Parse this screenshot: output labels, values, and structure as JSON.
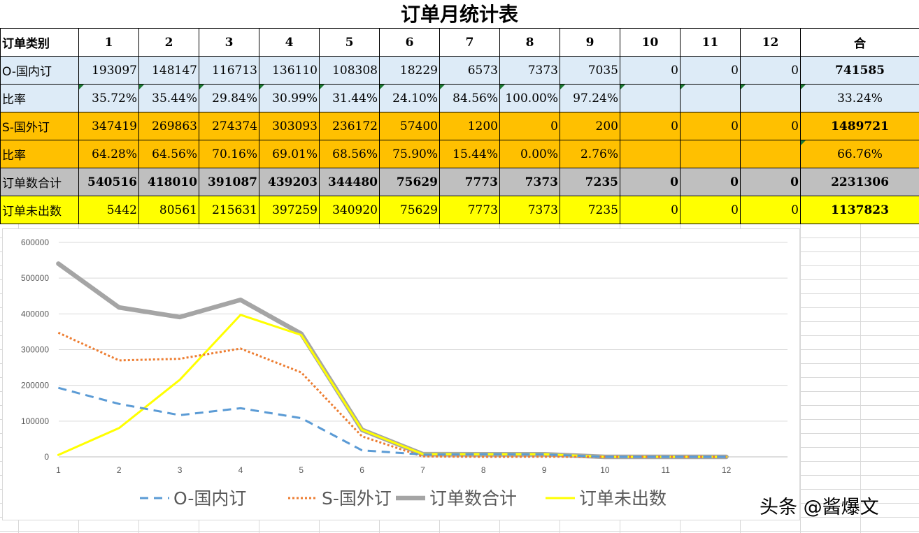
{
  "title": "订单月统计表",
  "table": {
    "headers": [
      "订单类别",
      "1",
      "2",
      "3",
      "4",
      "5",
      "6",
      "7",
      "8",
      "9",
      "10",
      "11",
      "12",
      "合"
    ],
    "rows": [
      {
        "label": "O-国内订",
        "values": [
          "193097",
          "148147",
          "116713",
          "136110",
          "108308",
          "18229",
          "6573",
          "7373",
          "7035",
          "0",
          "0",
          "0"
        ],
        "total": "741585"
      },
      {
        "label": "比率",
        "values": [
          "35.72%",
          "35.44%",
          "29.84%",
          "30.99%",
          "31.44%",
          "24.10%",
          "84.56%",
          "100.00%",
          "97.24%",
          "",
          "",
          ""
        ],
        "total": "33.24%"
      },
      {
        "label": "S-国外订",
        "values": [
          "347419",
          "269863",
          "274374",
          "303093",
          "236172",
          "57400",
          "1200",
          "0",
          "200",
          "0",
          "0",
          "0"
        ],
        "total": "1489721"
      },
      {
        "label": "比率",
        "values": [
          "64.28%",
          "64.56%",
          "70.16%",
          "69.01%",
          "68.56%",
          "75.90%",
          "15.44%",
          "0.00%",
          "2.76%",
          "",
          "",
          ""
        ],
        "total": "66.76%"
      },
      {
        "label": "订单数合计",
        "values": [
          "540516",
          "418010",
          "391087",
          "439203",
          "344480",
          "75629",
          "7773",
          "7373",
          "7235",
          "0",
          "0",
          "0"
        ],
        "total": "2231306"
      },
      {
        "label": "订单未出数",
        "values": [
          "5442",
          "80561",
          "215631",
          "397259",
          "340920",
          "75629",
          "7773",
          "7373",
          "7235",
          "0",
          "0",
          "0"
        ],
        "total": "1137823"
      }
    ]
  },
  "chart_data": {
    "type": "line",
    "x": [
      "1",
      "2",
      "3",
      "4",
      "5",
      "6",
      "7",
      "8",
      "9",
      "10",
      "11",
      "12"
    ],
    "ylim": [
      0,
      600000
    ],
    "yticks": [
      "0",
      "100000",
      "200000",
      "300000",
      "400000",
      "500000",
      "600000"
    ],
    "grid": true,
    "legend_position": "bottom",
    "series": [
      {
        "name": "O-国内订",
        "color": "#5b9bd5",
        "style": "dashed",
        "values": [
          193097,
          148147,
          116713,
          136110,
          108308,
          18229,
          6573,
          7373,
          7035,
          0,
          0,
          0
        ]
      },
      {
        "name": "S-国外订",
        "color": "#ed7d31",
        "style": "dotted",
        "values": [
          347419,
          269863,
          274374,
          303093,
          236172,
          57400,
          1200,
          0,
          200,
          0,
          0,
          0
        ]
      },
      {
        "name": "订单数合计",
        "color": "#a5a5a5",
        "style": "solid-thick",
        "values": [
          540516,
          418010,
          391087,
          439203,
          344480,
          75629,
          7773,
          7373,
          7235,
          0,
          0,
          0
        ]
      },
      {
        "name": "订单未出数",
        "color": "#ffff00",
        "style": "solid",
        "values": [
          5442,
          80561,
          215631,
          397259,
          340920,
          75629,
          7773,
          7373,
          7235,
          0,
          0,
          0
        ]
      }
    ]
  },
  "watermark": "头条 @酱爆文"
}
